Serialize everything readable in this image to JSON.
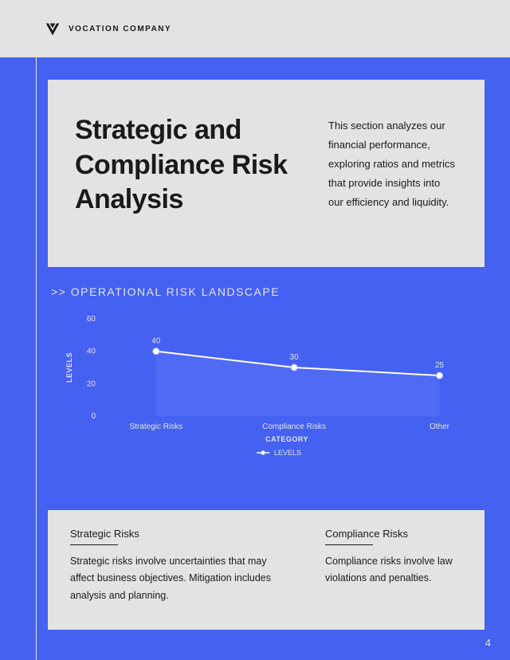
{
  "header": {
    "company_name": "VOCATION COMPANY"
  },
  "title_card": {
    "title": "Strategic and Compliance Risk Analysis",
    "description": "This section analyzes our financial performance, exploring ratios and metrics that provide insights into our efficiency and liquidity."
  },
  "chart": {
    "header_prefix": ">>",
    "header_text": "OPERATIONAL RISK LANDSCAPE",
    "type": "area-line",
    "x_label": "CATEGORY",
    "y_label": "LEVELS",
    "legend_label": "LEVELS",
    "categories": [
      "Strategic Risks",
      "Compliance Risks",
      "Other"
    ],
    "values": [
      40,
      30,
      25
    ],
    "ylim": [
      0,
      60
    ],
    "ytick_step": 20,
    "line_color": "#ffffff",
    "marker_fill": "#ffffff",
    "marker_stroke": "#b8c4f8",
    "area_fill": "#5b73f4",
    "area_opacity": 0.55,
    "text_color": "#e3e3e3",
    "line_width": 2,
    "marker_radius": 4
  },
  "cards": [
    {
      "title": "Strategic Risks",
      "body": "Strategic risks involve uncertainties that may affect business objectives. Mitigation includes analysis and planning."
    },
    {
      "title": "Compliance Risks",
      "body": "Compliance risks involve law violations and penalties."
    }
  ],
  "page_number": "4",
  "colors": {
    "page_bg": "#e3e3e3",
    "blue": "#4461f2",
    "text_dark": "#1a1a1a"
  }
}
